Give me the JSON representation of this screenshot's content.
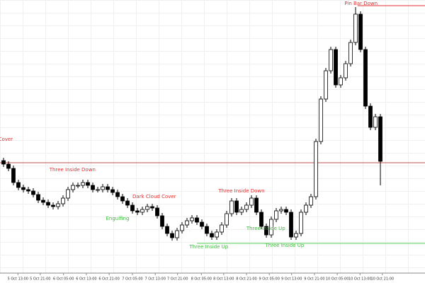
{
  "chart_data": {
    "type": "candlestick",
    "open": [
      158,
      153,
      147,
      127,
      120,
      117,
      115,
      110,
      102,
      99,
      95,
      93,
      97,
      105,
      117,
      123,
      123,
      127,
      123,
      117,
      117,
      121,
      117,
      113,
      107,
      101,
      95,
      87,
      85,
      89,
      93,
      91,
      80,
      65,
      55,
      49,
      59,
      67,
      73,
      77,
      71,
      65,
      55,
      50,
      57,
      67,
      83,
      101,
      85,
      89,
      95,
      105,
      85,
      65,
      53,
      75,
      87,
      89,
      85,
      50,
      55,
      85,
      95,
      107,
      185,
      245,
      285,
      315,
      265,
      275,
      295,
      325,
      365,
      315,
      235,
      205,
      220
    ],
    "high": [
      162,
      157,
      151,
      131,
      124,
      121,
      119,
      114,
      106,
      103,
      99,
      101,
      109,
      121,
      127,
      127,
      131,
      131,
      127,
      121,
      125,
      125,
      121,
      117,
      111,
      105,
      99,
      91,
      93,
      97,
      97,
      95,
      84,
      69,
      59,
      63,
      71,
      77,
      81,
      81,
      75,
      69,
      59,
      61,
      71,
      87,
      105,
      105,
      93,
      99,
      109,
      109,
      89,
      69,
      79,
      91,
      93,
      93,
      89,
      59,
      89,
      99,
      111,
      189,
      249,
      289,
      319,
      319,
      279,
      299,
      329,
      375,
      369,
      319,
      239,
      224,
      224
    ],
    "low": [
      149,
      143,
      123,
      116,
      113,
      111,
      106,
      98,
      95,
      91,
      89,
      89,
      93,
      101,
      113,
      119,
      119,
      119,
      113,
      113,
      113,
      113,
      109,
      103,
      97,
      91,
      83,
      81,
      81,
      85,
      87,
      76,
      61,
      51,
      45,
      45,
      55,
      63,
      69,
      67,
      61,
      51,
      46,
      46,
      53,
      63,
      79,
      81,
      81,
      85,
      91,
      81,
      61,
      49,
      49,
      71,
      83,
      81,
      46,
      46,
      51,
      81,
      91,
      103,
      181,
      241,
      281,
      261,
      261,
      271,
      291,
      321,
      311,
      231,
      201,
      201,
      123
    ],
    "close": [
      153,
      147,
      127,
      120,
      117,
      115,
      110,
      102,
      99,
      95,
      93,
      97,
      105,
      117,
      123,
      123,
      127,
      123,
      117,
      117,
      121,
      117,
      113,
      107,
      101,
      95,
      87,
      85,
      89,
      93,
      91,
      80,
      65,
      55,
      49,
      59,
      67,
      73,
      77,
      71,
      65,
      55,
      50,
      57,
      67,
      83,
      101,
      85,
      89,
      95,
      105,
      85,
      65,
      53,
      75,
      87,
      89,
      85,
      50,
      55,
      85,
      95,
      107,
      185,
      245,
      285,
      315,
      265,
      275,
      295,
      325,
      365,
      315,
      235,
      205,
      220,
      157
    ],
    "up_color": "#ffffff",
    "down_color": "#000000",
    "ylim": [
      0,
      385
    ],
    "xticks": [
      {
        "value": 2.9,
        "label": "5 Oct 13:00"
      },
      {
        "value": 7.4,
        "label": "5 Oct 21:00"
      },
      {
        "value": 12.1,
        "label": "6 Oct 05:00"
      },
      {
        "value": 16.7,
        "label": "6 Oct 13:00"
      },
      {
        "value": 21.3,
        "label": "6 Oct 21:00"
      },
      {
        "value": 26,
        "label": "7 Oct 05:00"
      },
      {
        "value": 30.6,
        "label": "7 Oct 13:00"
      },
      {
        "value": 35.1,
        "label": "7 Oct 21:00"
      },
      {
        "value": 39.9,
        "label": "8 Oct 05:00"
      },
      {
        "value": 44.4,
        "label": "8 Oct 13:00"
      },
      {
        "value": 49,
        "label": "8 Oct 21:00"
      },
      {
        "value": 53.6,
        "label": "9 Oct 05:00"
      },
      {
        "value": 58.1,
        "label": "9 Oct 13:00"
      },
      {
        "value": 62.7,
        "label": "9 Oct 21:00"
      },
      {
        "value": 67.3,
        "label": "10 Oct 05:00"
      },
      {
        "value": 71.9,
        "label": "10 Oct 13:00"
      },
      {
        "value": 76.4,
        "label": "10 Oct 21:00"
      }
    ],
    "hlines": [
      {
        "value": 155,
        "color": "#c0504d",
        "start": -1
      },
      {
        "value": 41,
        "color": "#5ad25a",
        "start": 39
      },
      {
        "value": 377,
        "color": "#e03030",
        "start": 71.4
      }
    ],
    "annotations": [
      {
        "text": "Cover",
        "color": "#e03030",
        "index": 0.4,
        "value": 188
      },
      {
        "text": "Three Inside Down",
        "color": "#e03030",
        "index": 13.9,
        "value": 145
      },
      {
        "text": "Dark Cloud Cover",
        "color": "#e03030",
        "index": 30.4,
        "value": 107
      },
      {
        "text": "Engulfing",
        "color": "#3cb83c",
        "index": 23,
        "value": 76
      },
      {
        "text": "Three Inside Down",
        "color": "#e03030",
        "index": 48,
        "value": 115
      },
      {
        "text": "Three Inside Up",
        "color": "#3cb83c",
        "index": 52.9,
        "value": 62
      },
      {
        "text": "Three Inside Up",
        "color": "#3cb83c",
        "index": 41.4,
        "value": 36
      },
      {
        "text": "Three Inside Up",
        "color": "#3cb83c",
        "index": 56.7,
        "value": 38
      },
      {
        "text": "Pin Bar Down",
        "color": "#e03030",
        "index": 72.1,
        "value": 380
      }
    ]
  }
}
